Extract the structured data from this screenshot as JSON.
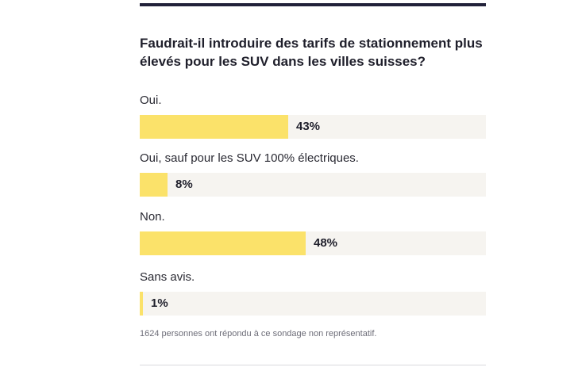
{
  "poll": {
    "question": "Faudrait-il introduire des tarifs de stationnement plus élevés pour les SUV dans les villes suisses?",
    "options": [
      {
        "label": "Oui.",
        "percent_label": "43%",
        "value": 43
      },
      {
        "label": "Oui, sauf pour les SUV 100% électriques.",
        "percent_label": "8%",
        "value": 8
      },
      {
        "label": "Non.",
        "percent_label": "48%",
        "value": 48
      },
      {
        "label": "Sans avis.",
        "percent_label": "1%",
        "value": 1
      }
    ],
    "footnote": "1624 personnes ont répondu à ce sondage non représentatif."
  },
  "colors": {
    "bar_fill": "#fbe26a",
    "track": "#f6f4f0",
    "top_bar": "#22223a"
  }
}
